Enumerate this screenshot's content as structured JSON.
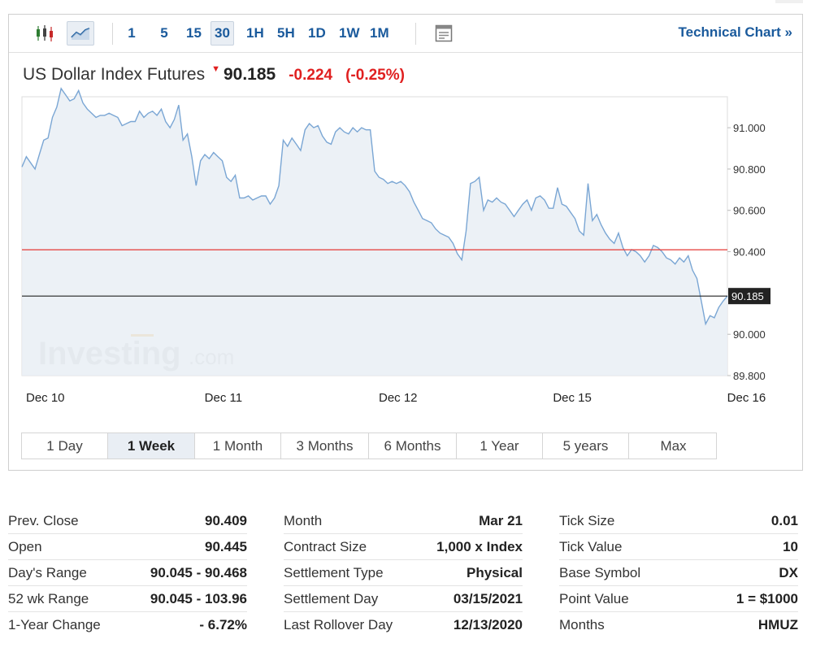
{
  "toolbar": {
    "chart_type_icons": [
      "candlestick-icon",
      "line-chart-icon"
    ],
    "timeframes": [
      {
        "label": "1",
        "active": false
      },
      {
        "label": "5",
        "active": false
      },
      {
        "label": "15",
        "active": false
      },
      {
        "label": "30",
        "active": true
      },
      {
        "label": "1H",
        "active": false
      },
      {
        "label": "5H",
        "active": false
      },
      {
        "label": "1D",
        "active": false
      },
      {
        "label": "1W",
        "active": false
      },
      {
        "label": "1M",
        "active": false
      }
    ],
    "settings_icon": "chart-settings-icon",
    "technical_chart_label": "Technical Chart",
    "technical_chart_arrow": "»"
  },
  "instrument": {
    "name": "US Dollar Index Futures",
    "direction_icon": "down-arrow-icon",
    "price": "90.185",
    "change": "-0.224",
    "change_pct": "(-0.25%)"
  },
  "colors": {
    "accent_blue": "#1a5a9c",
    "negative_red": "#e02020",
    "line_blue": "#7aa6d4",
    "area_fill": "#e9eff5",
    "reference_red": "#e53935",
    "current_price_black": "#222222"
  },
  "chart_data": {
    "type": "area",
    "title": "",
    "xlabel": "",
    "ylabel": "",
    "ylim": [
      89.8,
      91.15
    ],
    "yticks": [
      "91.000",
      "90.800",
      "90.600",
      "90.400",
      "90.000",
      "89.800"
    ],
    "xticks": [
      {
        "label": "Dec 10",
        "index": 0
      },
      {
        "label": "Dec 11",
        "index": 41
      },
      {
        "label": "Dec 12",
        "index": 81
      },
      {
        "label": "Dec 15",
        "index": 121
      },
      {
        "label": "Dec 16",
        "index": 161
      }
    ],
    "reference_lines": [
      {
        "label": "prev_close",
        "value": 90.409,
        "color": "#e53935"
      },
      {
        "label": "current",
        "value": 90.185,
        "color": "#222222",
        "tag": "90.185"
      }
    ],
    "watermark": {
      "brand": "Investing",
      "suffix": ".com"
    },
    "series": [
      {
        "values": [
          90.81,
          90.86,
          90.83,
          90.8,
          90.87,
          90.94,
          90.95,
          91.05,
          91.1,
          91.19,
          91.16,
          91.13,
          91.14,
          91.18,
          91.12,
          91.09,
          91.07,
          91.05,
          91.06,
          91.06,
          91.07,
          91.06,
          91.05,
          91.01,
          91.02,
          91.03,
          91.03,
          91.08,
          91.05,
          91.07,
          91.08,
          91.06,
          91.09,
          91.03,
          91.0,
          91.04,
          91.11,
          90.94,
          90.97,
          90.86,
          90.72,
          90.84,
          90.87,
          90.85,
          90.88,
          90.86,
          90.84,
          90.76,
          90.74,
          90.77,
          90.66,
          90.66,
          90.67,
          90.65,
          90.66,
          90.67,
          90.67,
          90.63,
          90.66,
          90.72,
          90.94,
          90.91,
          90.95,
          90.92,
          90.89,
          90.99,
          91.02,
          91.0,
          91.01,
          90.96,
          90.93,
          90.92,
          90.98,
          91.0,
          90.98,
          90.97,
          91.0,
          90.98,
          91.0,
          90.99,
          90.99,
          90.79,
          90.76,
          90.75,
          90.73,
          90.74,
          90.73,
          90.74,
          90.72,
          90.69,
          90.64,
          90.6,
          90.56,
          90.55,
          90.54,
          90.51,
          90.49,
          90.48,
          90.47,
          90.44,
          90.39,
          90.36,
          90.5,
          90.73,
          90.74,
          90.76,
          90.6,
          90.65,
          90.64,
          90.66,
          90.64,
          90.63,
          90.6,
          90.57,
          90.6,
          90.63,
          90.65,
          90.6,
          90.66,
          90.67,
          90.65,
          90.61,
          90.61,
          90.71,
          90.63,
          90.62,
          90.59,
          90.56,
          90.5,
          90.48,
          90.73,
          90.55,
          90.58,
          90.53,
          90.49,
          90.46,
          90.44,
          90.49,
          90.42,
          90.38,
          90.41,
          90.4,
          90.38,
          90.35,
          90.38,
          90.43,
          90.42,
          90.4,
          90.37,
          90.36,
          90.34,
          90.37,
          90.35,
          90.38,
          90.31,
          90.27,
          90.16,
          90.05,
          90.09,
          90.08,
          90.13,
          90.16,
          90.185
        ]
      }
    ]
  },
  "range_tabs": [
    {
      "label": "1 Day",
      "active": false
    },
    {
      "label": "1 Week",
      "active": true
    },
    {
      "label": "1 Month",
      "active": false
    },
    {
      "label": "3 Months",
      "active": false
    },
    {
      "label": "6 Months",
      "active": false
    },
    {
      "label": "1 Year",
      "active": false
    },
    {
      "label": "5 years",
      "active": false
    },
    {
      "label": "Max",
      "active": false
    }
  ],
  "stats": {
    "col1": [
      {
        "label": "Prev. Close",
        "value": "90.409"
      },
      {
        "label": "Open",
        "value": "90.445"
      },
      {
        "label": "Day's Range",
        "value": "90.045 - 90.468"
      },
      {
        "label": "52 wk Range",
        "value": "90.045 - 103.96"
      },
      {
        "label": "1-Year Change",
        "value": "- 6.72%"
      }
    ],
    "col2": [
      {
        "label": "Month",
        "value": "Mar 21"
      },
      {
        "label": "Contract Size",
        "value": "1,000 x Index"
      },
      {
        "label": "Settlement Type",
        "value": "Physical"
      },
      {
        "label": "Settlement Day",
        "value": "03/15/2021"
      },
      {
        "label": "Last Rollover Day",
        "value": "12/13/2020"
      }
    ],
    "col3": [
      {
        "label": "Tick Size",
        "value": "0.01"
      },
      {
        "label": "Tick Value",
        "value": "10"
      },
      {
        "label": "Base Symbol",
        "value": "DX"
      },
      {
        "label": "Point Value",
        "value": "1 = $1000"
      },
      {
        "label": "Months",
        "value": "HMUZ"
      }
    ]
  }
}
